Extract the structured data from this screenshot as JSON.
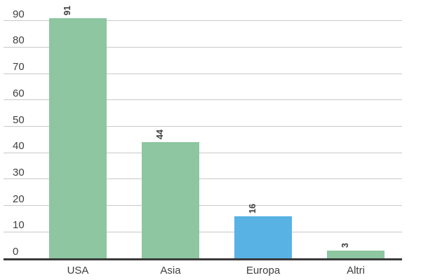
{
  "chart_data": {
    "type": "bar",
    "categories": [
      "USA",
      "Asia",
      "Europa",
      "Altri"
    ],
    "values": [
      91,
      44,
      16,
      3
    ],
    "value_labels": [
      "91",
      "44",
      "16",
      "3"
    ],
    "bar_colors": [
      "#8dc6a0",
      "#8dc6a0",
      "#58b2e4",
      "#8dc6a0"
    ],
    "value_label_rotation_deg": -90,
    "title": "",
    "xlabel": "",
    "ylabel": "",
    "ylim": [
      0,
      96
    ],
    "yticks": [
      0,
      10,
      20,
      30,
      40,
      50,
      60,
      70,
      80,
      90
    ],
    "grid": "horizontal",
    "legend": "none",
    "colors": {
      "bar_green": "#8dc6a0",
      "bar_blue": "#58b2e4",
      "gridline": "#c9c9c9",
      "axis_line": "#3a3a3a",
      "tick_label_text": "#3f3f3f",
      "category_label_text": "#3d3d3d",
      "value_label_text": "#3d3d3d",
      "background": "#ffffff"
    }
  }
}
